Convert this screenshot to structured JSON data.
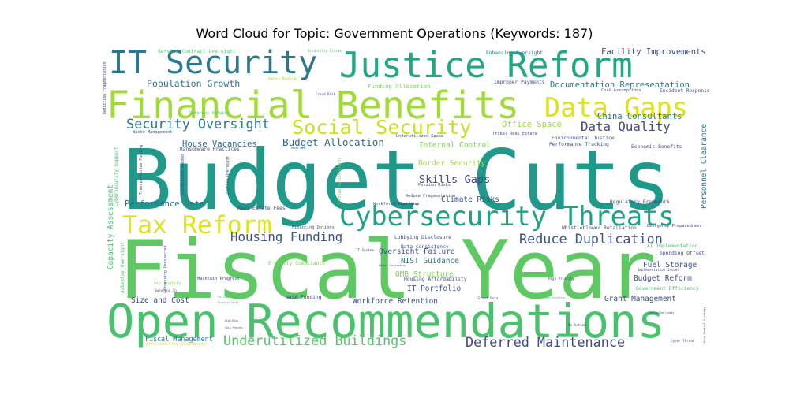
{
  "chart_data": {
    "type": "wordcloud",
    "title": "Word Cloud for Topic: Government Operations (Keywords: 187)",
    "words": [
      {
        "text": "Budget Cuts",
        "weight": 100,
        "color": "#1f9a8a"
      },
      {
        "text": "Fiscal Year",
        "weight": 98,
        "color": "#5ec962"
      },
      {
        "text": "Open Recommendations",
        "weight": 60,
        "color": "#4ac16d"
      },
      {
        "text": "Financial Benefits",
        "weight": 45,
        "color": "#a0da39"
      },
      {
        "text": "Justice Reform",
        "weight": 42,
        "color": "#22a785"
      },
      {
        "text": "IT Security",
        "weight": 38,
        "color": "#2a788e"
      },
      {
        "text": "Cybersecurity Threats",
        "weight": 32,
        "color": "#1fa187"
      },
      {
        "text": "Data Gaps",
        "weight": 32,
        "color": "#dde318"
      },
      {
        "text": "Tax Reform",
        "weight": 30,
        "color": "#dde318"
      },
      {
        "text": "Social Security",
        "weight": 24,
        "color": "#c8e020"
      },
      {
        "text": "Deferred Maintenance",
        "weight": 16,
        "color": "#3e4a89"
      },
      {
        "text": "Underutilized Buildings",
        "weight": 16,
        "color": "#52c569"
      },
      {
        "text": "Security Oversight",
        "weight": 16,
        "color": "#2a788e"
      },
      {
        "text": "Reduce Duplication",
        "weight": 16,
        "color": "#3b528b"
      },
      {
        "text": "Data Quality",
        "weight": 15,
        "color": "#3e4a89"
      },
      {
        "text": "Housing Funding",
        "weight": 15,
        "color": "#3b528b"
      },
      {
        "text": "Skills Gaps",
        "weight": 13,
        "color": "#3e4a89"
      },
      {
        "text": "Budget Allocation",
        "weight": 12,
        "color": "#31688e"
      },
      {
        "text": "Population Growth",
        "weight": 11,
        "color": "#2c728e"
      },
      {
        "text": "Documentation Representation",
        "weight": 10,
        "color": "#2a788e"
      },
      {
        "text": "Facility Improvements",
        "weight": 10,
        "color": "#3e4a89"
      },
      {
        "text": "Performance Data",
        "weight": 10,
        "color": "#2c728e"
      },
      {
        "text": "House Vacancies",
        "weight": 10,
        "color": "#31688e"
      },
      {
        "text": "Office Space",
        "weight": 10,
        "color": "#a0da39"
      },
      {
        "text": "China Consultants",
        "weight": 10,
        "color": "#2a788e"
      },
      {
        "text": "Border Security",
        "weight": 9,
        "color": "#a0da39"
      },
      {
        "text": "Internal Control",
        "weight": 9,
        "color": "#7ad151"
      },
      {
        "text": "Climate Risks",
        "weight": 9,
        "color": "#3e4a89"
      },
      {
        "text": "Oversight Failure",
        "weight": 9,
        "color": "#3e4a89"
      },
      {
        "text": "NIST Guidance",
        "weight": 9,
        "color": "#2a788e"
      },
      {
        "text": "OMB Structure",
        "weight": 9,
        "color": "#7ad151"
      },
      {
        "text": "IT Portfolio",
        "weight": 9,
        "color": "#3b528b"
      },
      {
        "text": "Workforce Retention",
        "weight": 9,
        "color": "#3b528b"
      },
      {
        "text": "Size and Cost",
        "weight": 9,
        "color": "#3e4a89"
      },
      {
        "text": "Grant Management",
        "weight": 9,
        "color": "#3e4a89"
      },
      {
        "text": "Budget Reform",
        "weight": 9,
        "color": "#3e4a89"
      },
      {
        "text": "Fuel Storage",
        "weight": 9,
        "color": "#3b528b"
      },
      {
        "text": "Personnel Clearance",
        "weight": 9,
        "color": "#2a788e"
      },
      {
        "text": "Capacity Assessment",
        "weight": 9,
        "color": "#4ac16d"
      },
      {
        "text": "Fiscal Management",
        "weight": 8,
        "color": "#2a788e"
      },
      {
        "text": "Funding Allocation",
        "weight": 7,
        "color": "#7ad151"
      },
      {
        "text": "Service Contract Oversight",
        "weight": 6,
        "color": "#4ac16d"
      },
      {
        "text": "Enhancing Oversight",
        "weight": 6,
        "color": "#2a788e"
      },
      {
        "text": "Performance Tracking",
        "weight": 6,
        "color": "#3e4a89"
      },
      {
        "text": "Economic Benefits",
        "weight": 6,
        "color": "#3e4a89"
      },
      {
        "text": "Environmental Justice",
        "weight": 6,
        "color": "#3b528b"
      },
      {
        "text": "Government Efficiency",
        "weight": 6,
        "color": "#4ac16d"
      },
      {
        "text": "Ransomware Practices",
        "weight": 6,
        "color": "#3e4a89"
      },
      {
        "text": "Real Estate Fees",
        "weight": 6,
        "color": "#3e4a89"
      },
      {
        "text": "Lobbying Disclosure",
        "weight": 6,
        "color": "#3e4a89"
      },
      {
        "text": "Data Consistency",
        "weight": 6,
        "color": "#3e4a89"
      },
      {
        "text": "E-Verify Compliance",
        "weight": 6,
        "color": "#7ad151"
      },
      {
        "text": "Housing Affordability",
        "weight": 6,
        "color": "#3e4a89"
      },
      {
        "text": "NASA Funding",
        "weight": 6,
        "color": "#3e4a89"
      },
      {
        "text": "Maintain Progress",
        "weight": 5,
        "color": "#3e4a89"
      },
      {
        "text": "Air Quality",
        "weight": 5,
        "color": "#7ad151"
      },
      {
        "text": "Affordability Challenges",
        "weight": 5,
        "color": "#dde318"
      },
      {
        "text": "Whistleblower Retaliation",
        "weight": 6,
        "color": "#3e4a89"
      },
      {
        "text": "Regulatory Framework",
        "weight": 6,
        "color": "#3e4a89"
      },
      {
        "text": "AI Implementation",
        "weight": 6,
        "color": "#4ac16d"
      },
      {
        "text": "Spending Offset",
        "weight": 6,
        "color": "#3e4a89"
      },
      {
        "text": "Emergency Preparedness",
        "weight": 5,
        "color": "#3e4a89"
      },
      {
        "text": "Improper Payments",
        "weight": 6,
        "color": "#3e4a89"
      },
      {
        "text": "Incident Response",
        "weight": 6,
        "color": "#3e4a89"
      },
      {
        "text": "Cost Assumptions",
        "weight": 5,
        "color": "#3e4a89"
      },
      {
        "text": "Tribal Real Estate",
        "weight": 5,
        "color": "#3e4a89"
      },
      {
        "text": "Underutilized Space",
        "weight": 5,
        "color": "#3e4a89"
      },
      {
        "text": "Reduce Fragmentation",
        "weight": 5,
        "color": "#3e4a89"
      },
      {
        "text": "Veterans Affairs",
        "weight": 5,
        "color": "#4ac16d"
      },
      {
        "text": "Waste Management",
        "weight": 5,
        "color": "#3e4a89"
      },
      {
        "text": "Pension Risks",
        "weight": 5,
        "color": "#3e4a89"
      },
      {
        "text": "Workforce Planning",
        "weight": 5,
        "color": "#3e4a89"
      },
      {
        "text": "Fraud Loss",
        "weight": 5,
        "color": "#3e4a89"
      },
      {
        "text": "Financing Options",
        "weight": 5,
        "color": "#3e4a89"
      },
      {
        "text": "High Priority",
        "weight": 4,
        "color": "#3e4a89"
      },
      {
        "text": "Fraud Risk",
        "weight": 4,
        "color": "#3e4a89"
      },
      {
        "text": "Agency Backlogs",
        "weight": 4,
        "color": "#a0da39"
      },
      {
        "text": "Disability Claims",
        "weight": 4,
        "color": "#4ac16d"
      },
      {
        "text": "Cyber Threat",
        "weight": 4,
        "color": "#3e4a89"
      },
      {
        "text": "No Action",
        "weight": 4,
        "color": "#3e4a89"
      },
      {
        "text": "Swearing In",
        "weight": 4,
        "color": "#3e4a89"
      },
      {
        "text": "Sale Process",
        "weight": 3,
        "color": "#3e4a89"
      },
      {
        "text": "High-Risk",
        "weight": 3,
        "color": "#3e4a89"
      },
      {
        "text": "Rural Mail",
        "weight": 3,
        "color": "#3e4a89"
      },
      {
        "text": "IT System",
        "weight": 4,
        "color": "#3e4a89"
      },
      {
        "text": "Grant Data",
        "weight": 4,
        "color": "#3e4a89"
      },
      {
        "text": "Fraud Detection",
        "weight": 3,
        "color": "#4ac16d"
      },
      {
        "text": "Implementation Issues",
        "weight": 4,
        "color": "#3e4a89"
      },
      {
        "text": "Voting Challenges",
        "weight": 3,
        "color": "#3e4a89"
      },
      {
        "text": "Property Risks",
        "weight": 3,
        "color": "#4ac16d"
      },
      {
        "text": "Tax Compliance",
        "weight": 3,
        "color": "#4ac16d"
      },
      {
        "text": "Budget Constraints",
        "weight": 3,
        "color": "#3e4a89"
      },
      {
        "text": "Asbestos Oversight",
        "weight": 5,
        "color": "#4ac16d"
      },
      {
        "text": "Cybersecurity Support",
        "weight": 5,
        "color": "#4ac16d"
      },
      {
        "text": "Transportation Funding",
        "weight": 4,
        "color": "#3e4a89"
      },
      {
        "text": "Addressing Unexpected",
        "weight": 4,
        "color": "#3e4a89"
      },
      {
        "text": "Inspections Needed",
        "weight": 4,
        "color": "#3e4a89"
      },
      {
        "text": "Justice Oversight",
        "weight": 4,
        "color": "#3e4a89"
      },
      {
        "text": "Transportation Grants",
        "weight": 4,
        "color": "#7ad151"
      },
      {
        "text": "Reduction Fragmentation",
        "weight": 4,
        "color": "#3e4a89"
      },
      {
        "text": "Drug Control Strategy",
        "weight": 3,
        "color": "#3e4a89"
      }
    ]
  }
}
